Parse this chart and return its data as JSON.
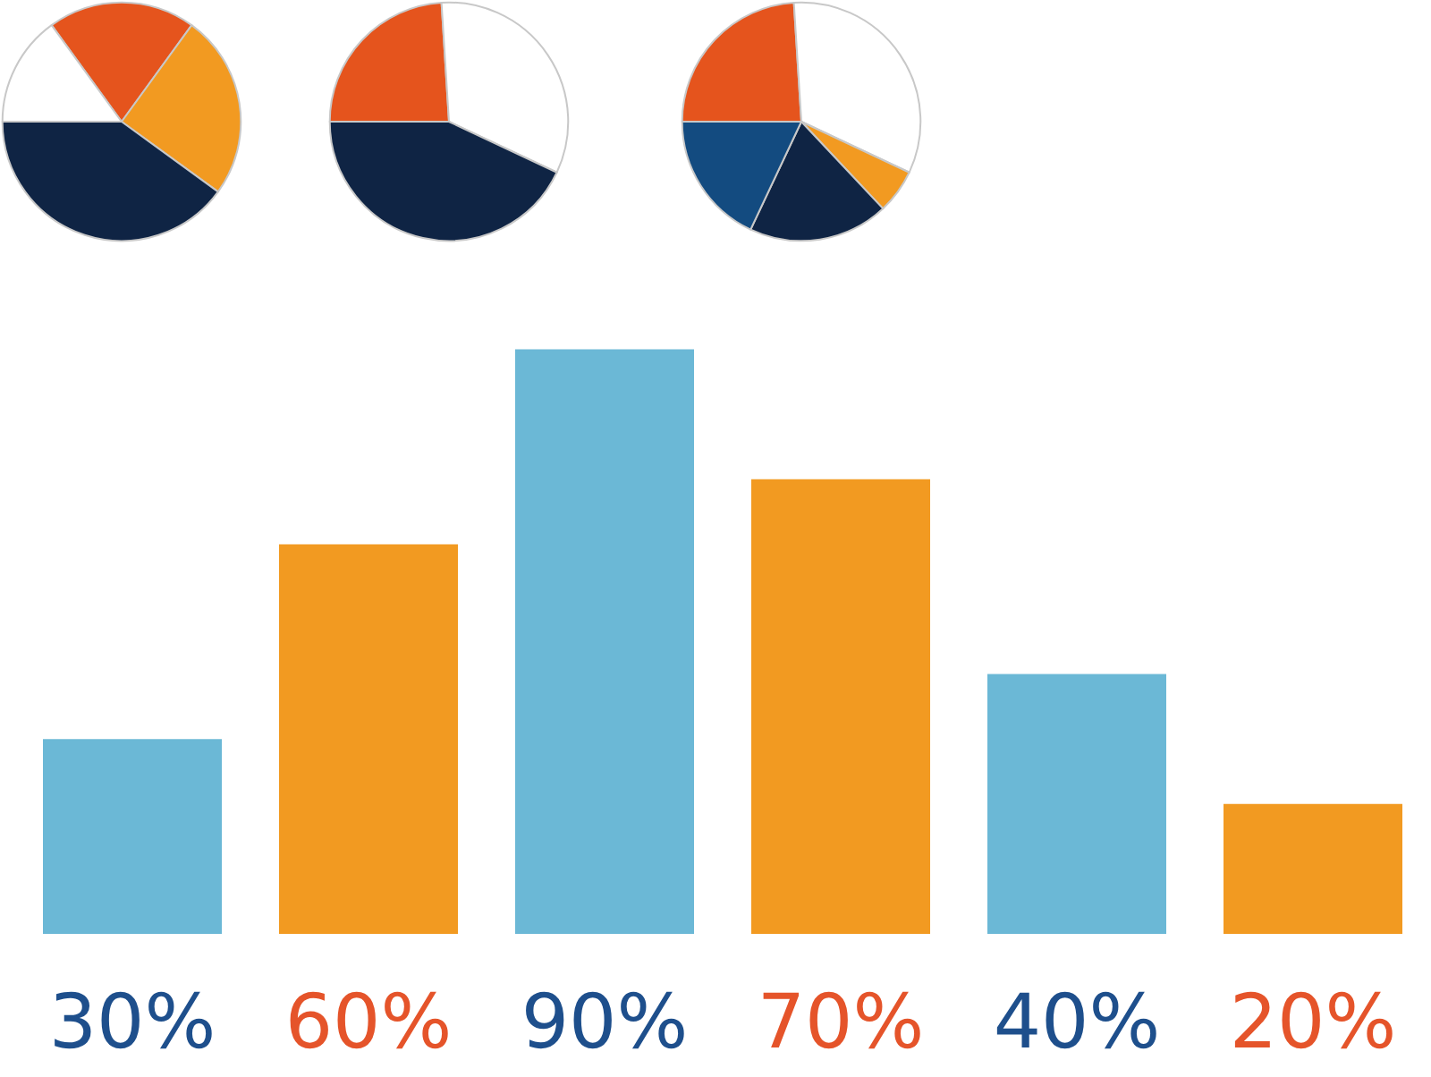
{
  "chart_data": [
    {
      "type": "pie",
      "categories": [
        null,
        null,
        null,
        null
      ],
      "values": [
        20,
        25,
        40,
        15
      ],
      "colors": [
        "#e5541d",
        "#f29a21",
        "#0f2444",
        "#ffffff"
      ]
    },
    {
      "type": "pie",
      "categories": [
        null,
        null,
        null
      ],
      "values": [
        24,
        33,
        43
      ],
      "colors": [
        "#e5541d",
        "#ffffff",
        "#0f2444"
      ]
    },
    {
      "type": "pie",
      "categories": [
        null,
        null,
        null,
        null,
        null
      ],
      "values": [
        24,
        33,
        6,
        19,
        18
      ],
      "colors": [
        "#e5541d",
        "#ffffff",
        "#f29a21",
        "#0f2444",
        "#134b80"
      ]
    },
    {
      "type": "bar",
      "categories": [
        null,
        null,
        null,
        null,
        null,
        null
      ],
      "values": [
        30,
        60,
        90,
        70,
        40,
        20
      ],
      "colors": [
        "#6bb8d6",
        "#f29a21",
        "#6bb8d6",
        "#f29a21",
        "#6bb8d6",
        "#f29a21"
      ],
      "tick_labels": false,
      "value_labels": [
        "30%",
        "60%",
        "90%",
        "70%",
        "40%",
        "20%"
      ]
    }
  ]
}
